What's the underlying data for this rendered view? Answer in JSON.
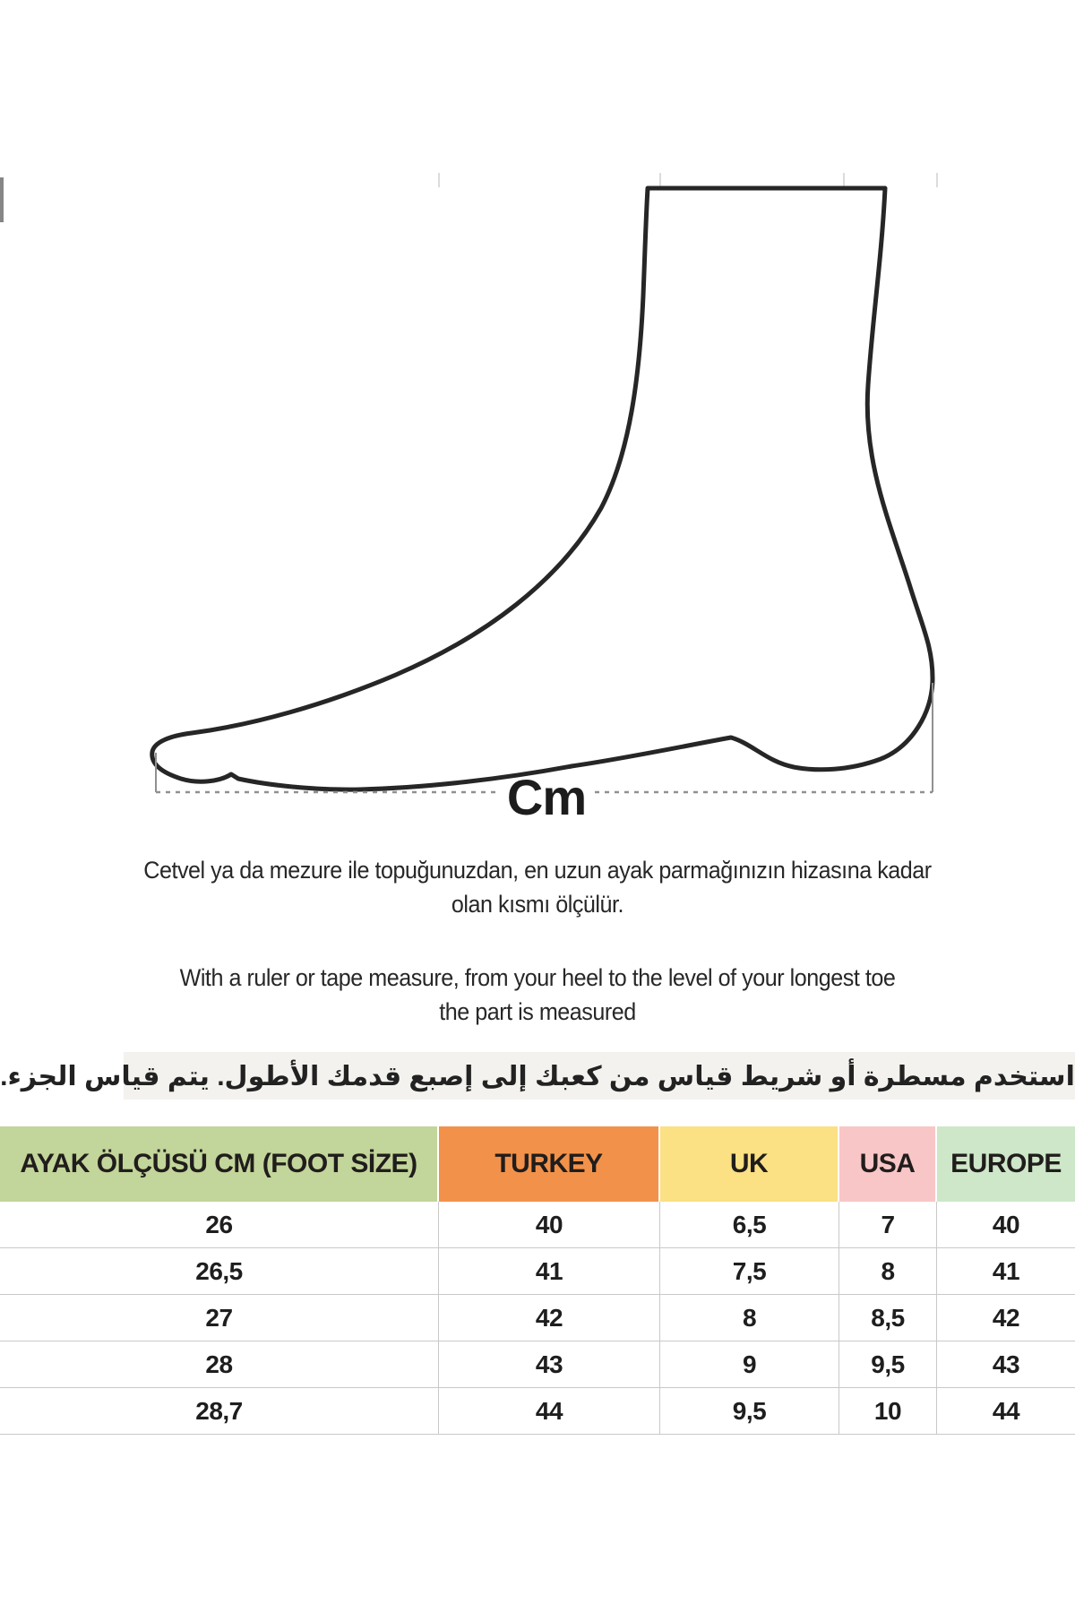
{
  "diagram": {
    "cm_label": "Cm"
  },
  "instructions": {
    "turkish": "Cetvel ya da mezure ile topuğunuzdan, en uzun ayak parmağınızın hizasına kadar\nolan kısmı ölçülür.",
    "english": "With a ruler or tape measure, from your heel to the level of your longest toe\nthe part is measured",
    "arabic": "استخدم مسطرة أو شريط قياس من كعبك إلى إصبع قدمك الأطول.  يتم قياس الجزء."
  },
  "size_table": {
    "columns": [
      {
        "id": "foot-size-cm",
        "label": "AYAK ÖLÇÜSÜ CM (FOOT SİZE)",
        "color": "#c2d59a"
      },
      {
        "id": "turkey",
        "label": "TURKEY",
        "color": "#f2924a"
      },
      {
        "id": "uk",
        "label": "UK",
        "color": "#fbe084"
      },
      {
        "id": "usa",
        "label": "USA",
        "color": "#f8c6c6"
      },
      {
        "id": "europe",
        "label": "EUROPE",
        "color": "#cde7c8"
      }
    ],
    "rows": [
      [
        "26",
        "40",
        "6,5",
        "7",
        "40"
      ],
      [
        "26,5",
        "41",
        "7,5",
        "8",
        "41"
      ],
      [
        "27",
        "42",
        "8",
        "8,5",
        "42"
      ],
      [
        "28",
        "43",
        "9",
        "9,5",
        "43"
      ],
      [
        "28,7",
        "44",
        "9,5",
        "10",
        "44"
      ]
    ]
  }
}
